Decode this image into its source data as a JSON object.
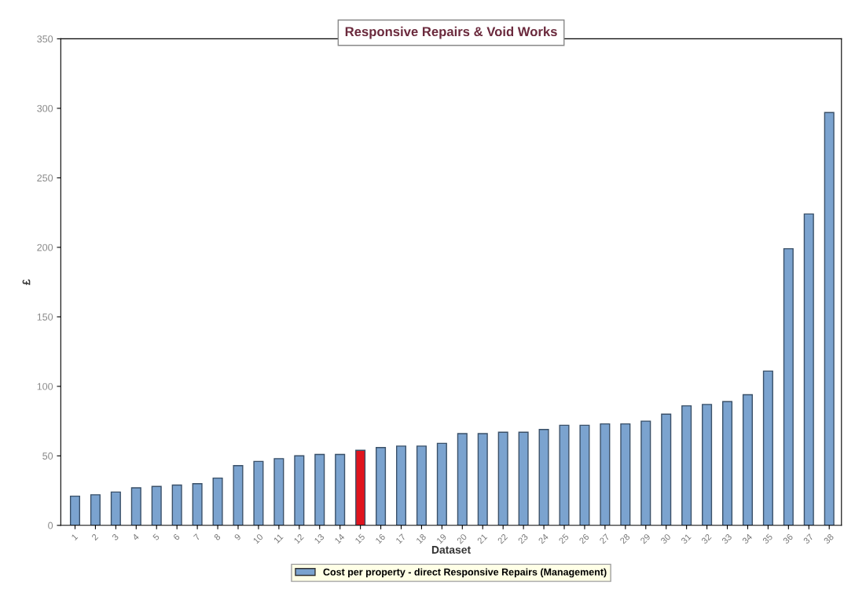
{
  "chart_data": {
    "type": "bar",
    "title": "Responsive Repairs & Void Works",
    "xlabel": "Dataset",
    "ylabel": "£",
    "categories": [
      "1",
      "2",
      "3",
      "4",
      "5",
      "6",
      "7",
      "8",
      "9",
      "10",
      "11",
      "12",
      "13",
      "14",
      "15",
      "16",
      "17",
      "18",
      "19",
      "20",
      "21",
      "22",
      "23",
      "24",
      "25",
      "26",
      "27",
      "28",
      "29",
      "30",
      "31",
      "32",
      "33",
      "34",
      "35",
      "36",
      "37",
      "38"
    ],
    "series": [
      {
        "name": "Cost per property - direct Responsive Repairs (Management)",
        "color": "#7ba3cf",
        "values": [
          21,
          22,
          24,
          27,
          28,
          29,
          30,
          34,
          43,
          46,
          48,
          50,
          51,
          51,
          54,
          56,
          57,
          57,
          59,
          66,
          66,
          67,
          67,
          69,
          72,
          72,
          73,
          73,
          75,
          80,
          86,
          87,
          89,
          94,
          111,
          199,
          224,
          297
        ],
        "colors": [
          "#7ba3cf",
          "#7ba3cf",
          "#7ba3cf",
          "#7ba3cf",
          "#7ba3cf",
          "#7ba3cf",
          "#7ba3cf",
          "#7ba3cf",
          "#7ba3cf",
          "#7ba3cf",
          "#7ba3cf",
          "#7ba3cf",
          "#7ba3cf",
          "#7ba3cf",
          "#e0141e",
          "#7ba3cf",
          "#7ba3cf",
          "#7ba3cf",
          "#7ba3cf",
          "#7ba3cf",
          "#7ba3cf",
          "#7ba3cf",
          "#7ba3cf",
          "#7ba3cf",
          "#7ba3cf",
          "#7ba3cf",
          "#7ba3cf",
          "#7ba3cf",
          "#7ba3cf",
          "#7ba3cf",
          "#7ba3cf",
          "#7ba3cf",
          "#7ba3cf",
          "#7ba3cf",
          "#7ba3cf",
          "#7ba3cf",
          "#7ba3cf",
          "#7ba3cf"
        ]
      }
    ],
    "ylim": [
      0,
      350
    ],
    "yticks": [
      0,
      50,
      100,
      150,
      200,
      250,
      300,
      350
    ],
    "grid": false,
    "legend": "bottom"
  }
}
